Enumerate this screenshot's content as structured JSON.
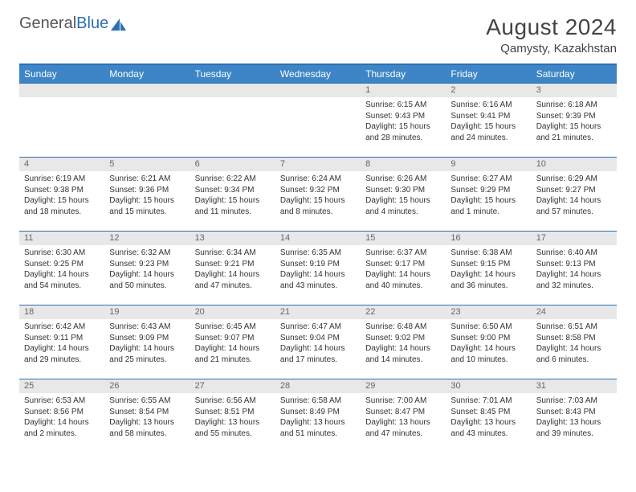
{
  "logo": {
    "text1": "General",
    "text2": "Blue"
  },
  "title": "August 2024",
  "location": "Qamysty, Kazakhstan",
  "colors": {
    "header_bg": "#3d85c6",
    "border": "#2d6fb5",
    "daynum_bg": "#e8e8e8",
    "text": "#333333"
  },
  "weekdays": [
    "Sunday",
    "Monday",
    "Tuesday",
    "Wednesday",
    "Thursday",
    "Friday",
    "Saturday"
  ],
  "weeks": [
    [
      null,
      null,
      null,
      null,
      {
        "n": "1",
        "sr": "Sunrise: 6:15 AM",
        "ss": "Sunset: 9:43 PM",
        "d1": "Daylight: 15 hours",
        "d2": "and 28 minutes."
      },
      {
        "n": "2",
        "sr": "Sunrise: 6:16 AM",
        "ss": "Sunset: 9:41 PM",
        "d1": "Daylight: 15 hours",
        "d2": "and 24 minutes."
      },
      {
        "n": "3",
        "sr": "Sunrise: 6:18 AM",
        "ss": "Sunset: 9:39 PM",
        "d1": "Daylight: 15 hours",
        "d2": "and 21 minutes."
      }
    ],
    [
      {
        "n": "4",
        "sr": "Sunrise: 6:19 AM",
        "ss": "Sunset: 9:38 PM",
        "d1": "Daylight: 15 hours",
        "d2": "and 18 minutes."
      },
      {
        "n": "5",
        "sr": "Sunrise: 6:21 AM",
        "ss": "Sunset: 9:36 PM",
        "d1": "Daylight: 15 hours",
        "d2": "and 15 minutes."
      },
      {
        "n": "6",
        "sr": "Sunrise: 6:22 AM",
        "ss": "Sunset: 9:34 PM",
        "d1": "Daylight: 15 hours",
        "d2": "and 11 minutes."
      },
      {
        "n": "7",
        "sr": "Sunrise: 6:24 AM",
        "ss": "Sunset: 9:32 PM",
        "d1": "Daylight: 15 hours",
        "d2": "and 8 minutes."
      },
      {
        "n": "8",
        "sr": "Sunrise: 6:26 AM",
        "ss": "Sunset: 9:30 PM",
        "d1": "Daylight: 15 hours",
        "d2": "and 4 minutes."
      },
      {
        "n": "9",
        "sr": "Sunrise: 6:27 AM",
        "ss": "Sunset: 9:29 PM",
        "d1": "Daylight: 15 hours",
        "d2": "and 1 minute."
      },
      {
        "n": "10",
        "sr": "Sunrise: 6:29 AM",
        "ss": "Sunset: 9:27 PM",
        "d1": "Daylight: 14 hours",
        "d2": "and 57 minutes."
      }
    ],
    [
      {
        "n": "11",
        "sr": "Sunrise: 6:30 AM",
        "ss": "Sunset: 9:25 PM",
        "d1": "Daylight: 14 hours",
        "d2": "and 54 minutes."
      },
      {
        "n": "12",
        "sr": "Sunrise: 6:32 AM",
        "ss": "Sunset: 9:23 PM",
        "d1": "Daylight: 14 hours",
        "d2": "and 50 minutes."
      },
      {
        "n": "13",
        "sr": "Sunrise: 6:34 AM",
        "ss": "Sunset: 9:21 PM",
        "d1": "Daylight: 14 hours",
        "d2": "and 47 minutes."
      },
      {
        "n": "14",
        "sr": "Sunrise: 6:35 AM",
        "ss": "Sunset: 9:19 PM",
        "d1": "Daylight: 14 hours",
        "d2": "and 43 minutes."
      },
      {
        "n": "15",
        "sr": "Sunrise: 6:37 AM",
        "ss": "Sunset: 9:17 PM",
        "d1": "Daylight: 14 hours",
        "d2": "and 40 minutes."
      },
      {
        "n": "16",
        "sr": "Sunrise: 6:38 AM",
        "ss": "Sunset: 9:15 PM",
        "d1": "Daylight: 14 hours",
        "d2": "and 36 minutes."
      },
      {
        "n": "17",
        "sr": "Sunrise: 6:40 AM",
        "ss": "Sunset: 9:13 PM",
        "d1": "Daylight: 14 hours",
        "d2": "and 32 minutes."
      }
    ],
    [
      {
        "n": "18",
        "sr": "Sunrise: 6:42 AM",
        "ss": "Sunset: 9:11 PM",
        "d1": "Daylight: 14 hours",
        "d2": "and 29 minutes."
      },
      {
        "n": "19",
        "sr": "Sunrise: 6:43 AM",
        "ss": "Sunset: 9:09 PM",
        "d1": "Daylight: 14 hours",
        "d2": "and 25 minutes."
      },
      {
        "n": "20",
        "sr": "Sunrise: 6:45 AM",
        "ss": "Sunset: 9:07 PM",
        "d1": "Daylight: 14 hours",
        "d2": "and 21 minutes."
      },
      {
        "n": "21",
        "sr": "Sunrise: 6:47 AM",
        "ss": "Sunset: 9:04 PM",
        "d1": "Daylight: 14 hours",
        "d2": "and 17 minutes."
      },
      {
        "n": "22",
        "sr": "Sunrise: 6:48 AM",
        "ss": "Sunset: 9:02 PM",
        "d1": "Daylight: 14 hours",
        "d2": "and 14 minutes."
      },
      {
        "n": "23",
        "sr": "Sunrise: 6:50 AM",
        "ss": "Sunset: 9:00 PM",
        "d1": "Daylight: 14 hours",
        "d2": "and 10 minutes."
      },
      {
        "n": "24",
        "sr": "Sunrise: 6:51 AM",
        "ss": "Sunset: 8:58 PM",
        "d1": "Daylight: 14 hours",
        "d2": "and 6 minutes."
      }
    ],
    [
      {
        "n": "25",
        "sr": "Sunrise: 6:53 AM",
        "ss": "Sunset: 8:56 PM",
        "d1": "Daylight: 14 hours",
        "d2": "and 2 minutes."
      },
      {
        "n": "26",
        "sr": "Sunrise: 6:55 AM",
        "ss": "Sunset: 8:54 PM",
        "d1": "Daylight: 13 hours",
        "d2": "and 58 minutes."
      },
      {
        "n": "27",
        "sr": "Sunrise: 6:56 AM",
        "ss": "Sunset: 8:51 PM",
        "d1": "Daylight: 13 hours",
        "d2": "and 55 minutes."
      },
      {
        "n": "28",
        "sr": "Sunrise: 6:58 AM",
        "ss": "Sunset: 8:49 PM",
        "d1": "Daylight: 13 hours",
        "d2": "and 51 minutes."
      },
      {
        "n": "29",
        "sr": "Sunrise: 7:00 AM",
        "ss": "Sunset: 8:47 PM",
        "d1": "Daylight: 13 hours",
        "d2": "and 47 minutes."
      },
      {
        "n": "30",
        "sr": "Sunrise: 7:01 AM",
        "ss": "Sunset: 8:45 PM",
        "d1": "Daylight: 13 hours",
        "d2": "and 43 minutes."
      },
      {
        "n": "31",
        "sr": "Sunrise: 7:03 AM",
        "ss": "Sunset: 8:43 PM",
        "d1": "Daylight: 13 hours",
        "d2": "and 39 minutes."
      }
    ]
  ]
}
